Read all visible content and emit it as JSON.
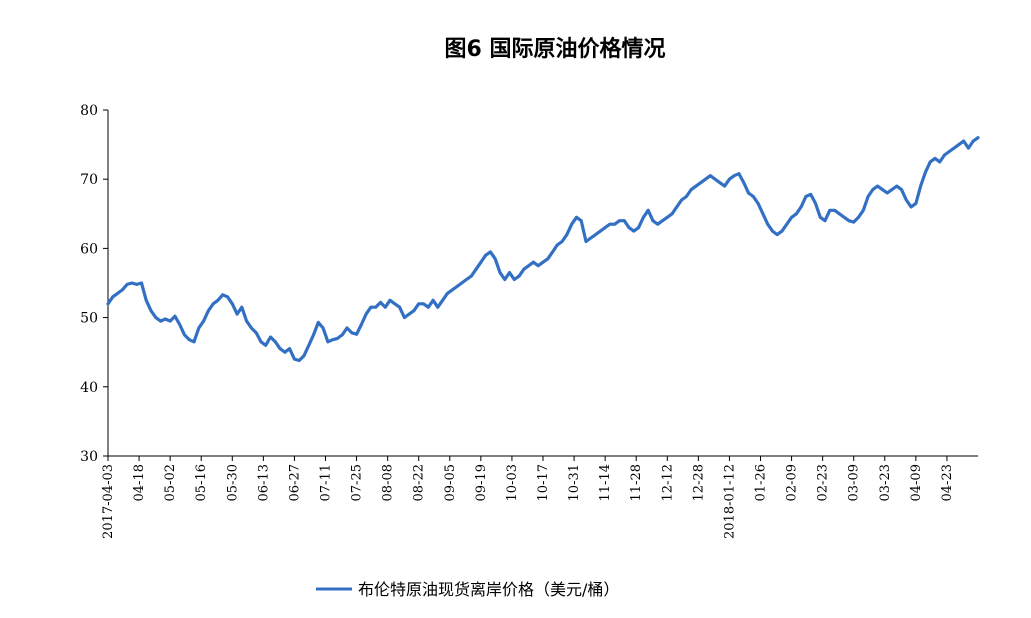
{
  "chart_data": {
    "type": "line",
    "title": "图6 国际原油价格情况",
    "xlabel": "",
    "ylabel": "",
    "ylim": [
      30,
      80
    ],
    "yticks": [
      30,
      40,
      50,
      60,
      70,
      80
    ],
    "grid": false,
    "legend_position": "bottom",
    "x_tick_labels": [
      "2017-04-03",
      "04-18",
      "05-02",
      "05-16",
      "05-30",
      "06-13",
      "06-27",
      "07-11",
      "07-25",
      "08-08",
      "08-22",
      "09-05",
      "09-19",
      "10-03",
      "10-17",
      "10-31",
      "11-14",
      "11-28",
      "12-12",
      "12-28",
      "2018-01-12",
      "01-26",
      "02-09",
      "02-23",
      "03-09",
      "03-23",
      "04-09",
      "04-23"
    ],
    "series": [
      {
        "name": "布伦特原油现货离岸价格（美元/桶）",
        "color": "#3370C4",
        "values": [
          52.0,
          53.0,
          53.5,
          54.0,
          54.8,
          55.0,
          54.8,
          55.0,
          52.5,
          51.0,
          50.0,
          49.5,
          49.8,
          49.5,
          50.2,
          49.0,
          47.5,
          46.8,
          46.5,
          48.5,
          49.5,
          51.0,
          52.0,
          52.5,
          53.3,
          53.0,
          52.0,
          50.5,
          51.5,
          49.5,
          48.5,
          47.8,
          46.5,
          46.0,
          47.2,
          46.5,
          45.5,
          45.0,
          45.5,
          44.0,
          43.8,
          44.5,
          46.0,
          47.5,
          49.3,
          48.5,
          46.5,
          46.8,
          47.0,
          47.5,
          48.5,
          47.8,
          47.6,
          49.0,
          50.5,
          51.5,
          51.5,
          52.2,
          51.5,
          52.5,
          52.0,
          51.5,
          50.0,
          50.5,
          51.0,
          52.0,
          52.0,
          51.5,
          52.5,
          51.5,
          52.5,
          53.5,
          54.0,
          54.5,
          55.0,
          55.5,
          56.0,
          57.0,
          58.0,
          59.0,
          59.5,
          58.5,
          56.5,
          55.5,
          56.5,
          55.5,
          56.0,
          57.0,
          57.5,
          58.0,
          57.5,
          58.0,
          58.5,
          59.5,
          60.5,
          61.0,
          62.0,
          63.5,
          64.5,
          64.0,
          61.0,
          61.5,
          62.0,
          62.5,
          63.0,
          63.5,
          63.5,
          64.0,
          64.0,
          63.0,
          62.5,
          63.0,
          64.5,
          65.5,
          64.0,
          63.5,
          64.0,
          64.5,
          65.0,
          66.0,
          67.0,
          67.5,
          68.5,
          69.0,
          69.5,
          70.0,
          70.5,
          70.0,
          69.5,
          69.0,
          70.0,
          70.5,
          70.8,
          69.5,
          68.0,
          67.5,
          66.5,
          65.0,
          63.5,
          62.5,
          62.0,
          62.5,
          63.5,
          64.5,
          65.0,
          66.0,
          67.5,
          67.8,
          66.5,
          64.5,
          64.0,
          65.5,
          65.5,
          65.0,
          64.5,
          64.0,
          63.8,
          64.5,
          65.5,
          67.5,
          68.5,
          69.0,
          68.5,
          68.0,
          68.5,
          69.0,
          68.5,
          67.0,
          66.0,
          66.5,
          69.0,
          71.0,
          72.5,
          73.0,
          72.5,
          73.5,
          74.0,
          74.5,
          75.0,
          75.5,
          74.5,
          75.5,
          76.0
        ]
      }
    ]
  }
}
